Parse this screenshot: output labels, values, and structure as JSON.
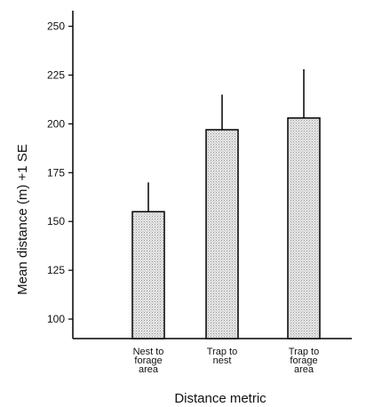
{
  "chart_data": {
    "type": "bar",
    "categories": [
      [
        "Nest to",
        "forage",
        "area"
      ],
      [
        "Trap to",
        "nest"
      ],
      [
        "Trap to",
        "forage",
        "area"
      ]
    ],
    "values": [
      155,
      197,
      203
    ],
    "error_plus": [
      15,
      18,
      25
    ],
    "title": "",
    "xlabel": "Distance metric",
    "ylabel": "Mean distance (m) +1 SE",
    "ylim": [
      90,
      258
    ],
    "yticks": [
      100,
      125,
      150,
      175,
      200,
      225,
      250
    ],
    "bar_fill": "#e0e0e0",
    "grid": false,
    "legend": "none"
  }
}
